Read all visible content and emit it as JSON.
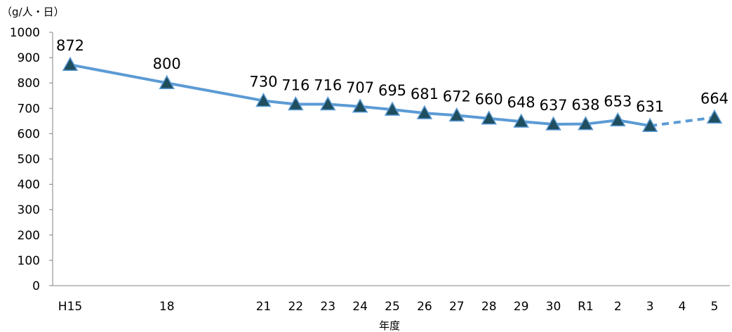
{
  "chart_data": {
    "type": "line",
    "unit_label": "（g/人・日）",
    "xlabel": "年度",
    "ylabel": "",
    "ylim": [
      0,
      1000
    ],
    "yticks": [
      0,
      100,
      200,
      300,
      400,
      500,
      600,
      700,
      800,
      900,
      1000
    ],
    "grid": false,
    "categories": [
      "H15",
      "18",
      "21",
      "22",
      "23",
      "24",
      "25",
      "26",
      "27",
      "28",
      "29",
      "30",
      "R1",
      "2",
      "3",
      "4",
      "5"
    ],
    "x_positions": [
      15,
      18,
      21,
      22,
      23,
      24,
      25,
      26,
      27,
      28,
      29,
      30,
      31,
      32,
      33,
      34,
      35
    ],
    "values": [
      872,
      800,
      730,
      716,
      716,
      707,
      695,
      681,
      672,
      660,
      648,
      637,
      638,
      653,
      631,
      null,
      664
    ],
    "dashed_segment": [
      "3",
      "5"
    ],
    "colors": {
      "line": "#5b9bd5",
      "marker_fill": "#1f4e5f",
      "marker_stroke": "#5b9bd5",
      "axis": "#808080"
    }
  }
}
